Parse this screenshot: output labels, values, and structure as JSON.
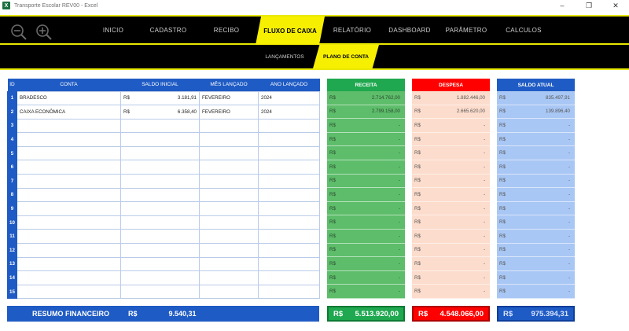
{
  "window": {
    "title": "Transporte Escolar REV00 - Excel",
    "app_icon": "X"
  },
  "nav": {
    "items": [
      "INICIO",
      "CADASTRO",
      "RECIBO",
      "FLUXO DE CAIXA",
      "RELATÓRIO",
      "DASHBOARD",
      "PARÂMETRO",
      "CALCULOS"
    ],
    "active": "FLUXO DE CAIXA"
  },
  "subnav": {
    "items": [
      "LANÇAMENTOS",
      "PLANO DE CONTA"
    ],
    "active": "PLANO DE CONTA"
  },
  "table": {
    "headers": {
      "id": "ID",
      "conta": "CONTA",
      "saldo": "SALDO INICIAL",
      "mes": "MÊS LANÇADO",
      "ano": "ANO LANÇADO"
    },
    "rows": [
      {
        "id": "1",
        "conta": "BRADESCO",
        "rs": "R$",
        "saldo": "3.181,91",
        "mes": "FEVEREIRO",
        "ano": "2024"
      },
      {
        "id": "2",
        "conta": "CAIXA ECONÔMICA",
        "rs": "R$",
        "saldo": "6.358,40",
        "mes": "FEVEREIRO",
        "ano": "2024"
      },
      {
        "id": "3",
        "conta": "",
        "rs": "",
        "saldo": "",
        "mes": "",
        "ano": ""
      },
      {
        "id": "4",
        "conta": "",
        "rs": "",
        "saldo": "",
        "mes": "",
        "ano": ""
      },
      {
        "id": "5",
        "conta": "",
        "rs": "",
        "saldo": "",
        "mes": "",
        "ano": ""
      },
      {
        "id": "6",
        "conta": "",
        "rs": "",
        "saldo": "",
        "mes": "",
        "ano": ""
      },
      {
        "id": "7",
        "conta": "",
        "rs": "",
        "saldo": "",
        "mes": "",
        "ano": ""
      },
      {
        "id": "8",
        "conta": "",
        "rs": "",
        "saldo": "",
        "mes": "",
        "ano": ""
      },
      {
        "id": "9",
        "conta": "",
        "rs": "",
        "saldo": "",
        "mes": "",
        "ano": ""
      },
      {
        "id": "10",
        "conta": "",
        "rs": "",
        "saldo": "",
        "mes": "",
        "ano": ""
      },
      {
        "id": "11",
        "conta": "",
        "rs": "",
        "saldo": "",
        "mes": "",
        "ano": ""
      },
      {
        "id": "12",
        "conta": "",
        "rs": "",
        "saldo": "",
        "mes": "",
        "ano": ""
      },
      {
        "id": "13",
        "conta": "",
        "rs": "",
        "saldo": "",
        "mes": "",
        "ano": ""
      },
      {
        "id": "14",
        "conta": "",
        "rs": "",
        "saldo": "",
        "mes": "",
        "ano": ""
      },
      {
        "id": "15",
        "conta": "",
        "rs": "",
        "saldo": "",
        "mes": "",
        "ano": ""
      }
    ]
  },
  "receita": {
    "header": "RECEITA",
    "values": [
      "2.714.762,00",
      "2.799.158,00",
      "-",
      "-",
      "-",
      "-",
      "-",
      "-",
      "-",
      "-",
      "-",
      "-",
      "-",
      "-",
      "-"
    ]
  },
  "despesa": {
    "header": "DESPESA",
    "values": [
      "1.882.446,00",
      "2.665.620,00",
      "-",
      "-",
      "-",
      "-",
      "-",
      "-",
      "-",
      "-",
      "-",
      "-",
      "-",
      "-",
      "-"
    ]
  },
  "saldo_atual": {
    "header": "SALDO ATUAL",
    "values": [
      "835.497,91",
      "139.896,40",
      "-",
      "-",
      "-",
      "-",
      "-",
      "-",
      "-",
      "-",
      "-",
      "-",
      "-",
      "-",
      "-"
    ]
  },
  "currency": "R$",
  "totals": {
    "resumo_label": "RESUMO FINANCEIRO",
    "saldo_inicial": "9.540,31",
    "receita": "5.513.920,00",
    "despesa": "4.548.066,00",
    "saldo_atual": "975.394,31"
  },
  "icons": {
    "zoom_out": "zoom-out-icon",
    "zoom_in": "zoom-in-icon"
  },
  "colors": {
    "accent_yellow": "#f7ef00",
    "blue": "#1f5bc4",
    "green": "#1fa84f",
    "red": "#ff0000"
  }
}
